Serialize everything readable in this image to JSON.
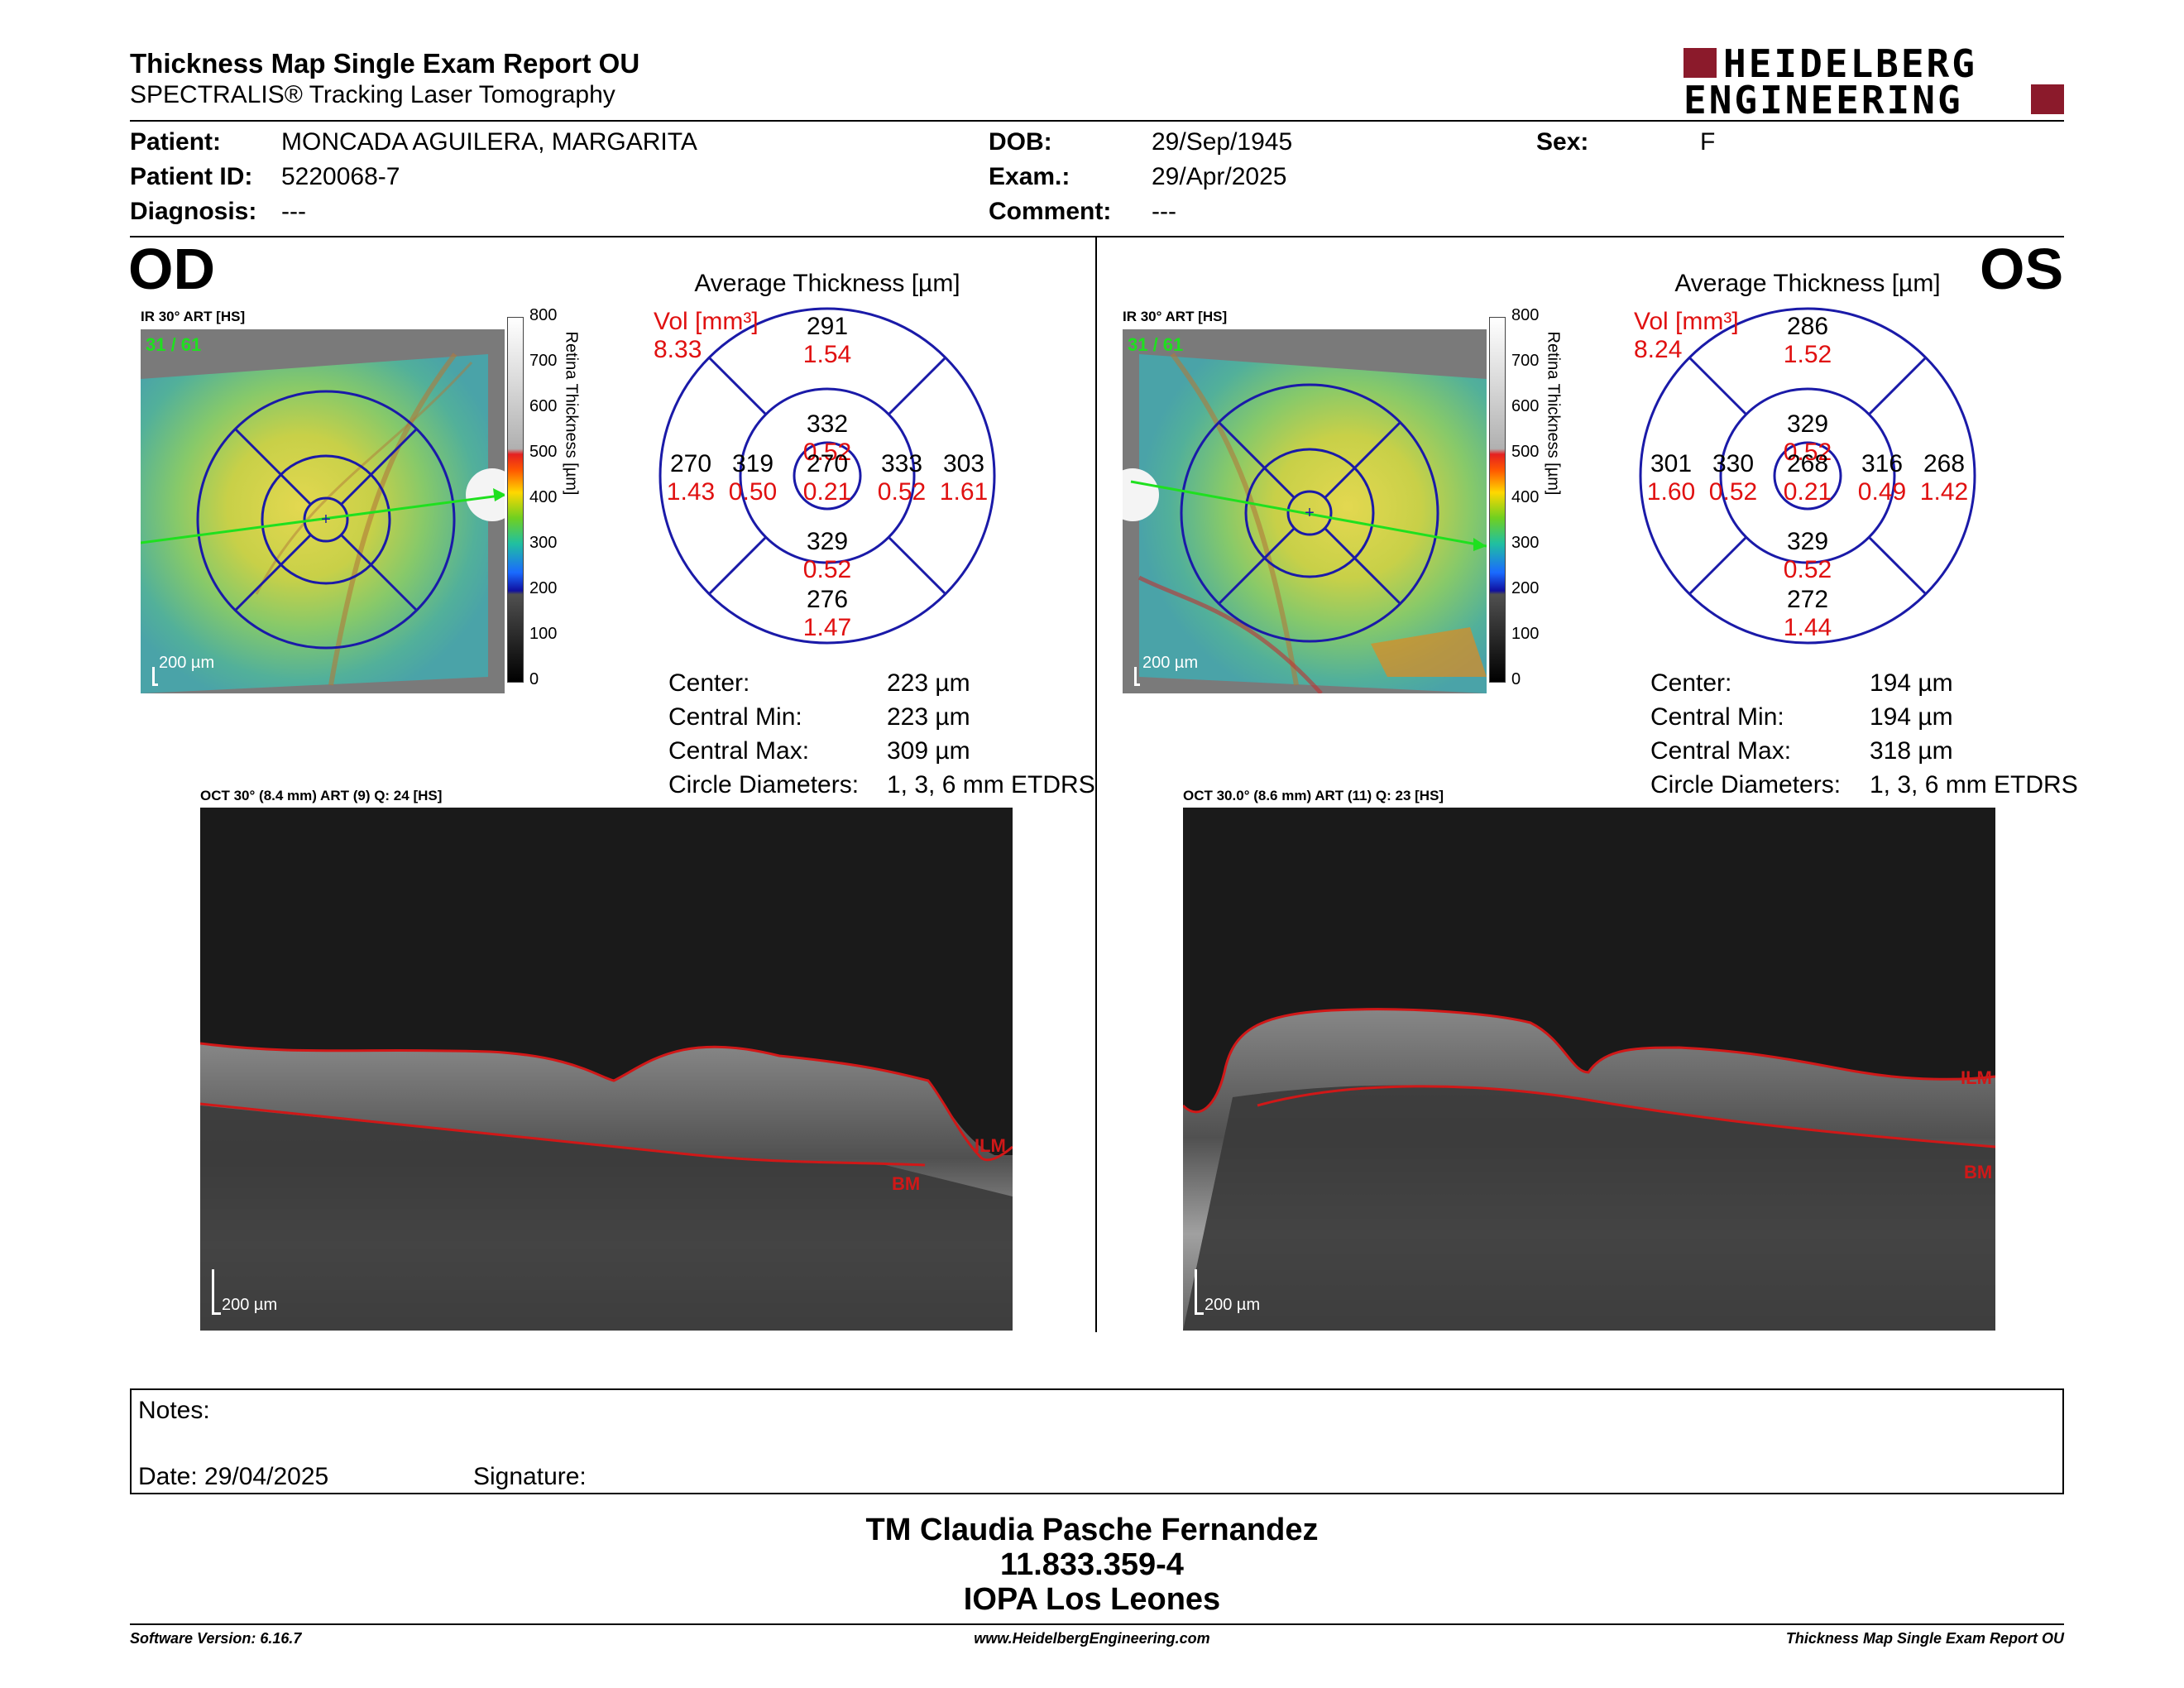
{
  "report": {
    "title": "Thickness Map Single Exam Report OU",
    "subtitle": "SPECTRALIS® Tracking Laser Tomography",
    "logo_line1": "HEIDELBERG",
    "logo_line2": "ENGINEERING"
  },
  "patient": {
    "patient_label": "Patient:",
    "patient_value": "MONCADA AGUILERA, MARGARITA",
    "id_label": "Patient ID:",
    "id_value": "5220068-7",
    "diagnosis_label": "Diagnosis:",
    "diagnosis_value": "---",
    "dob_label": "DOB:",
    "dob_value": "29/Sep/1945",
    "exam_label": "Exam.:",
    "exam_value": "29/Apr/2025",
    "comment_label": "Comment:",
    "comment_value": "---",
    "sex_label": "Sex:",
    "sex_value": "F"
  },
  "colorbar": {
    "ticks": [
      "800",
      "700",
      "600",
      "500",
      "400",
      "300",
      "200",
      "100",
      "0"
    ],
    "title": "Retina Thickness [µm]"
  },
  "od": {
    "eye": "OD",
    "ir_label": "IR 30° ART [HS]",
    "frame_counter": "31 / 61",
    "scale_label": "200 µm",
    "avg_title": "Average Thickness [µm]",
    "vol_label": "Vol [mm³]",
    "total_vol": "8.33",
    "sectors": {
      "outer_sup": "291",
      "outer_sup_vol": "1.54",
      "inner_sup": "332",
      "inner_sup_vol": "0.52",
      "outer_left": "270",
      "outer_left_vol": "1.43",
      "inner_left": "319",
      "inner_left_vol": "0.50",
      "center": "270",
      "center_vol": "0.21",
      "inner_right": "333",
      "inner_right_vol": "0.52",
      "outer_right": "303",
      "outer_right_vol": "1.61",
      "inner_inf": "329",
      "inner_inf_vol": "0.52",
      "outer_inf": "276",
      "outer_inf_vol": "1.47"
    },
    "center_label": "Center:",
    "center_value": "223 µm",
    "cmin_label": "Central Min:",
    "cmin_value": "223 µm",
    "cmax_label": "Central Max:",
    "cmax_value": "309 µm",
    "diam_label": "Circle Diameters:",
    "diam_value": "1, 3, 6 mm ETDRS",
    "oct_label": "OCT 30° (8.4 mm) ART (9) Q: 24 [HS]",
    "ilm": "ILM",
    "bm": "BM",
    "oct_scale": "200 µm"
  },
  "os": {
    "eye": "OS",
    "ir_label": "IR 30° ART [HS]",
    "frame_counter": "31 / 61",
    "scale_label": "200 µm",
    "avg_title": "Average Thickness [µm]",
    "vol_label": "Vol [mm³]",
    "total_vol": "8.24",
    "sectors": {
      "outer_sup": "286",
      "outer_sup_vol": "1.52",
      "inner_sup": "329",
      "inner_sup_vol": "0.52",
      "outer_left": "301",
      "outer_left_vol": "1.60",
      "inner_left": "330",
      "inner_left_vol": "0.52",
      "center": "268",
      "center_vol": "0.21",
      "inner_right": "316",
      "inner_right_vol": "0.49",
      "outer_right": "268",
      "outer_right_vol": "1.42",
      "inner_inf": "329",
      "inner_inf_vol": "0.52",
      "outer_inf": "272",
      "outer_inf_vol": "1.44"
    },
    "center_label": "Center:",
    "center_value": "194 µm",
    "cmin_label": "Central Min:",
    "cmin_value": "194 µm",
    "cmax_label": "Central Max:",
    "cmax_value": "318 µm",
    "diam_label": "Circle Diameters:",
    "diam_value": "1, 3, 6 mm ETDRS",
    "oct_label": "OCT 30.0° (8.6 mm) ART (11) Q: 23 [HS]",
    "ilm": "ILM",
    "bm": "BM",
    "oct_scale": "200 µm"
  },
  "notes": {
    "notes_label": "Notes:",
    "date_label": "Date: 29/04/2025",
    "signature_label": "Signature:"
  },
  "signoff": {
    "name": "TM Claudia Pasche Fernandez",
    "rut": "11.833.359-4",
    "institution": "IOPA Los Leones"
  },
  "footer": {
    "software": "Software Version: 6.16.7",
    "website": "www.HeidelbergEngineering.com",
    "report_name": "Thickness Map Single Exam Report OU"
  },
  "colors": {
    "brand": "#8b1a2b",
    "grid_blue": "#1a1aa8",
    "volume_red": "#e01010",
    "seg_line": "#d01818"
  }
}
